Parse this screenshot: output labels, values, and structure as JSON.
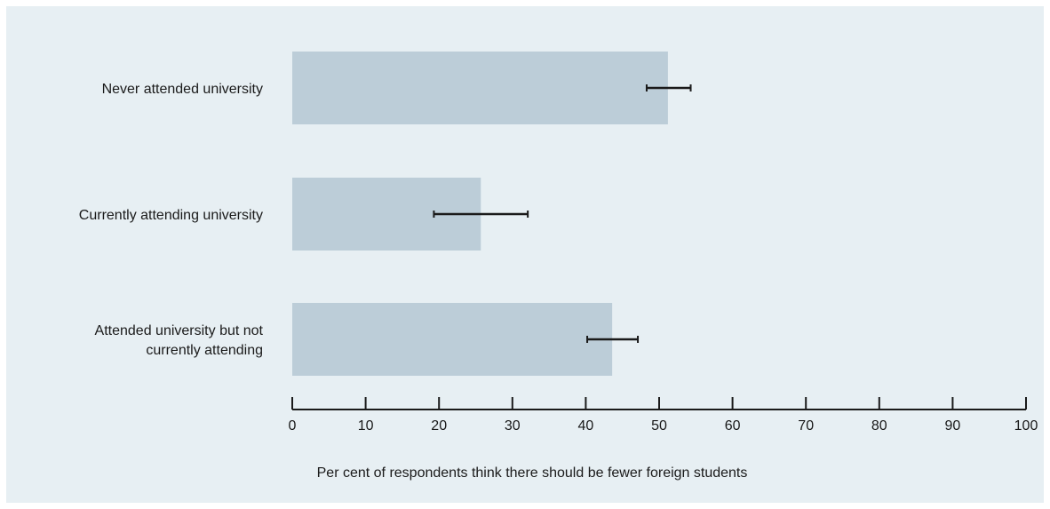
{
  "chart_data": {
    "type": "bar",
    "orientation": "horizontal",
    "categories": [
      [
        "Never attended university"
      ],
      [
        "Currently attending university"
      ],
      [
        "Attended university but not",
        "currently attending"
      ]
    ],
    "values": [
      51.2,
      25.7,
      43.6
    ],
    "error_low": [
      48.3,
      19.3,
      40.2
    ],
    "error_high": [
      54.3,
      32.1,
      47.1
    ],
    "xlabel": "Per cent of respondents think there should be fewer foreign students",
    "xlim": [
      0,
      100
    ],
    "xticks": [
      0,
      10,
      20,
      30,
      40,
      50,
      60,
      70,
      80,
      90,
      100
    ],
    "grid": false,
    "colors": {
      "bar": "#bccdd8",
      "background": "#e7eff3",
      "error_bar": "#1a1a1a",
      "axis": "#1a1a1a"
    }
  }
}
